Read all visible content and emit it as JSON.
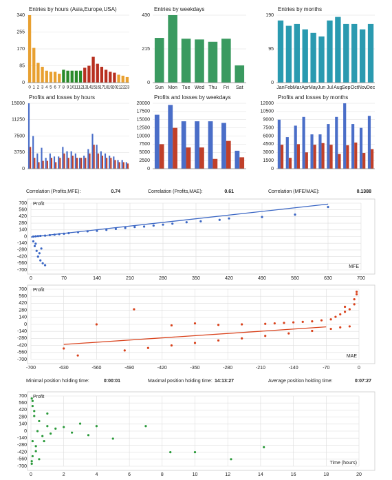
{
  "chart_data": [
    {
      "type": "bar",
      "title": "Entries by hours (Asia,Europe,USA)",
      "categories": [
        "0",
        "1",
        "2",
        "3",
        "4",
        "5",
        "6",
        "7",
        "8",
        "9",
        "10",
        "11",
        "12",
        "13",
        "14",
        "15",
        "16",
        "17",
        "18",
        "19",
        "20",
        "21",
        "22",
        "23"
      ],
      "values": [
        340,
        175,
        100,
        80,
        60,
        55,
        55,
        45,
        65,
        60,
        60,
        60,
        60,
        75,
        85,
        130,
        95,
        80,
        65,
        55,
        50,
        40,
        35,
        28
      ],
      "colors": [
        "#e8a030",
        "#e8a030",
        "#e8a030",
        "#e8a030",
        "#e8a030",
        "#e8a030",
        "#e8a030",
        "#e8a030",
        "#2a8a2a",
        "#2a8a2a",
        "#2a8a2a",
        "#2a8a2a",
        "#2a8a2a",
        "#b83020",
        "#b83020",
        "#b83020",
        "#b83020",
        "#b83020",
        "#b83020",
        "#b83020",
        "#b83020",
        "#e8a030",
        "#e8a030",
        "#e8a030"
      ],
      "ylim": [
        0,
        340
      ],
      "yticks": [
        0,
        85,
        170,
        255,
        340
      ],
      "grid": true
    },
    {
      "type": "bar",
      "title": "Entries by weekdays",
      "categories": [
        "Sun",
        "Mon",
        "Tue",
        "Wed",
        "Thu",
        "Fri",
        "Sat"
      ],
      "values": [
        285,
        430,
        280,
        275,
        260,
        280,
        110
      ],
      "color": "#3a9a60",
      "ylim": [
        0,
        430
      ],
      "yticks": [
        0,
        215,
        430
      ],
      "grid": true
    },
    {
      "type": "bar",
      "title": "Entries by months",
      "categories": [
        "Jan",
        "Feb",
        "Mar",
        "Apr",
        "May",
        "Jun",
        "Jul",
        "Aug",
        "Sep",
        "Oct",
        "Nov",
        "Dec"
      ],
      "values": [
        175,
        160,
        165,
        150,
        140,
        130,
        175,
        185,
        165,
        165,
        150,
        165
      ],
      "color": "#2a9ab0",
      "ylim": [
        0,
        190
      ],
      "yticks": [
        0,
        95,
        190
      ],
      "grid": true
    },
    {
      "type": "bar",
      "title": "Profits and losses by hours",
      "series": [
        {
          "color": "#4a6ec8",
          "values": [
            15000,
            7500,
            3500,
            4800,
            2500,
            3500,
            2800,
            2800,
            5000,
            4000,
            4000,
            3500,
            2500,
            3000,
            4500,
            8000,
            5500,
            4000,
            3500,
            3000,
            2800,
            2000,
            2000,
            1500
          ]
        },
        {
          "color": "#c0402a",
          "values": [
            5000,
            2500,
            1500,
            1800,
            1800,
            2500,
            1500,
            2500,
            3500,
            2500,
            3000,
            2500,
            2500,
            2500,
            3500,
            5500,
            3500,
            3000,
            2500,
            2500,
            2000,
            1500,
            1500,
            1200
          ]
        }
      ],
      "ylim": [
        0,
        15000
      ],
      "yticks": [
        0,
        3750,
        7500,
        11250,
        15000
      ],
      "grid": true
    },
    {
      "type": "bar",
      "title": "Profits and losses by weekdays",
      "series": [
        {
          "color": "#4a6ec8",
          "values": [
            16500,
            19500,
            14500,
            14500,
            14500,
            14000,
            5500
          ]
        },
        {
          "color": "#c0402a",
          "values": [
            7500,
            12500,
            6500,
            6500,
            3000,
            8500,
            3500
          ]
        }
      ],
      "ylim": [
        0,
        20000
      ],
      "yticks": [
        0,
        2500,
        5000,
        7500,
        10000,
        12500,
        15000,
        17500,
        20000
      ],
      "grid": true
    },
    {
      "type": "bar",
      "title": "Profits and losses by months",
      "series": [
        {
          "color": "#4a6ec8",
          "values": [
            9000,
            5800,
            7900,
            9500,
            6300,
            6300,
            8200,
            9500,
            12000,
            8200,
            7500,
            9700
          ]
        },
        {
          "color": "#c0402a",
          "values": [
            4400,
            2000,
            4500,
            3000,
            4400,
            4700,
            4400,
            2700,
            4300,
            4800,
            2900,
            3600
          ]
        }
      ],
      "ylim": [
        0,
        12000
      ],
      "yticks": [
        0,
        1500,
        3000,
        4500,
        6000,
        7500,
        9000,
        10500,
        12000
      ],
      "grid": true
    },
    {
      "type": "scatter",
      "y_label": "Profit",
      "x_label": "MFE",
      "color": "#3a66c4",
      "x": [
        5,
        10,
        15,
        20,
        30,
        40,
        50,
        60,
        70,
        80,
        100,
        120,
        140,
        160,
        180,
        200,
        220,
        240,
        260,
        280,
        300,
        330,
        360,
        400,
        420,
        490,
        560,
        630,
        5,
        8,
        12,
        15,
        20,
        25,
        30,
        10,
        18,
        22
      ],
      "y": [
        0,
        5,
        10,
        15,
        20,
        30,
        40,
        50,
        60,
        70,
        90,
        110,
        120,
        140,
        160,
        180,
        200,
        210,
        230,
        250,
        270,
        300,
        320,
        350,
        380,
        410,
        460,
        620,
        -100,
        -200,
        -300,
        -420,
        -500,
        -560,
        -600,
        -150,
        -350,
        -250
      ],
      "trend": {
        "x": [
          0,
          630
        ],
        "y": [
          -10,
          680
        ]
      },
      "xlim": [
        0,
        700
      ],
      "xticks": [
        0,
        70,
        140,
        210,
        280,
        350,
        420,
        490,
        560,
        630,
        700
      ],
      "ylim": [
        -700,
        700
      ],
      "yticks": [
        -700,
        -560,
        -420,
        -280,
        -140,
        0,
        140,
        280,
        420,
        560,
        700
      ],
      "grid": true
    },
    {
      "type": "scatter",
      "y_label": "Profit",
      "x_label": "MAE",
      "color": "#d9421c",
      "x": [
        -5,
        -10,
        -20,
        -30,
        -40,
        -50,
        -60,
        -80,
        -100,
        -120,
        -140,
        -160,
        -180,
        -200,
        -250,
        -300,
        -350,
        -400,
        -480,
        -560,
        -630,
        -20,
        -40,
        -60,
        -100,
        -150,
        -200,
        -250,
        -300,
        -350,
        -400,
        -450,
        -500,
        -600,
        -10,
        -30,
        -5
      ],
      "y": [
        600,
        400,
        300,
        250,
        200,
        150,
        100,
        80,
        60,
        50,
        40,
        30,
        20,
        10,
        0,
        -10,
        20,
        -20,
        300,
        0,
        -480,
        -40,
        -60,
        -90,
        -130,
        -180,
        -230,
        -280,
        -320,
        -370,
        -420,
        -470,
        -520,
        -620,
        500,
        350,
        650
      ],
      "trend": {
        "x": [
          -630,
          -70
        ],
        "y": [
          -400,
          -50
        ]
      },
      "xlim": [
        -700,
        0
      ],
      "xticks": [
        -700,
        -630,
        -560,
        -490,
        -420,
        -350,
        -280,
        -210,
        -140,
        -70,
        0
      ],
      "ylim": [
        -700,
        700
      ],
      "yticks": [
        -700,
        -560,
        -420,
        -280,
        -140,
        0,
        140,
        280,
        420,
        560,
        700
      ],
      "grid": true
    },
    {
      "type": "scatter",
      "y_label": "Profit",
      "x_label": "Time (hours)",
      "color": "#2a9a3a",
      "x": [
        0.05,
        0.1,
        0.1,
        0.2,
        0.3,
        0.5,
        0.7,
        1,
        1.2,
        1.5,
        2,
        2.5,
        3,
        3.5,
        4,
        5,
        7,
        8.5,
        10,
        12.2,
        14.2,
        0.05,
        0.1,
        0.2,
        0.3,
        0.4,
        0.5,
        0.8,
        1,
        0.05,
        0.1
      ],
      "y": [
        650,
        500,
        -200,
        300,
        -400,
        200,
        -100,
        100,
        -50,
        50,
        80,
        -30,
        150,
        -80,
        100,
        -150,
        100,
        -420,
        -420,
        -560,
        -320,
        -600,
        -500,
        400,
        -300,
        0,
        -560,
        -200,
        350,
        -650,
        600
      ],
      "xlim": [
        0,
        20
      ],
      "xticks": [
        0,
        2,
        4,
        6,
        8,
        10,
        12,
        14,
        16,
        18,
        20
      ],
      "ylim": [
        -700,
        700
      ],
      "yticks": [
        -700,
        -560,
        -420,
        -280,
        -140,
        0,
        140,
        280,
        420,
        560,
        700
      ],
      "grid": true
    }
  ],
  "correlations": [
    {
      "label": "Correlation (Profits,MFE):",
      "value": "0.74"
    },
    {
      "label": "Correlation (Profits,MAE):",
      "value": "0.61"
    },
    {
      "label": "Correlation (MFE/MAE):",
      "value": "0.1388"
    }
  ],
  "holding_times": [
    {
      "label": "Minimal position holding time:",
      "value": "0:00:01"
    },
    {
      "label": "Maximal position holding time:",
      "value": "14:13:27"
    },
    {
      "label": "Average position holding time:",
      "value": "0:07:27"
    }
  ]
}
